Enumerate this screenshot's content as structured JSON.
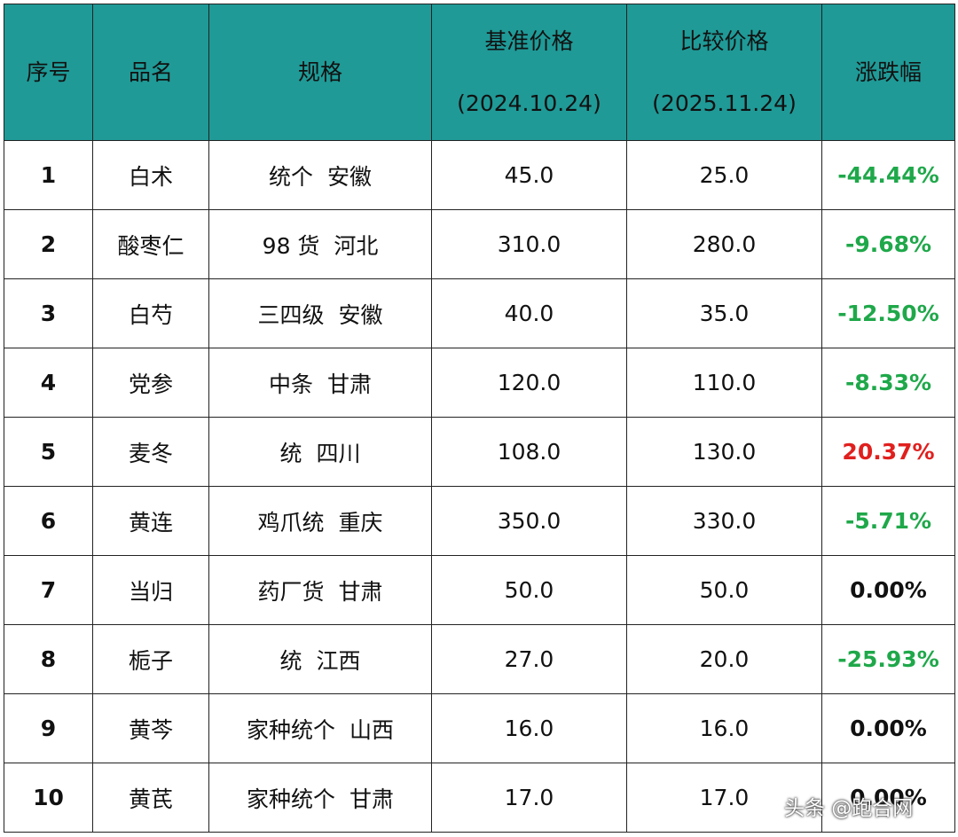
{
  "table": {
    "header": [
      "序号",
      "品名",
      "规格",
      [
        "基准价格",
        "(2024.10.24)"
      ],
      [
        "比较价格",
        "(2025.11.24)"
      ],
      "涨跌幅"
    ],
    "rows": [
      [
        "1",
        "白术",
        "统个  安徽",
        "45.0",
        "25.0",
        "-44.44%"
      ],
      [
        "2",
        "酸枣仁",
        "98 货  河北",
        "310.0",
        "280.0",
        "-9.68%"
      ],
      [
        "3",
        "白芍",
        "三四级  安徽",
        "40.0",
        "35.0",
        "-12.50%"
      ],
      [
        "4",
        "党参",
        "中条  甘肃",
        "120.0",
        "110.0",
        "-8.33%"
      ],
      [
        "5",
        "麦冬",
        "统  四川",
        "108.0",
        "130.0",
        "20.37%"
      ],
      [
        "6",
        "黄连",
        "鸡爪统  重庆",
        "350.0",
        "330.0",
        "-5.71%"
      ],
      [
        "7",
        "当归",
        "药厂货  甘肃",
        "50.0",
        "50.0",
        "0.00%"
      ],
      [
        "8",
        "栀子",
        "统  江西",
        "27.0",
        "20.0",
        "-25.93%"
      ],
      [
        "9",
        "黄芩",
        "家种统个  山西",
        "16.0",
        "16.0",
        "0.00%"
      ],
      [
        "10",
        "黄芪",
        "家种统个  甘肃",
        "17.0",
        "17.0",
        "0.00%"
      ]
    ],
    "change_colors": [
      "#1fa84a",
      "#1fa84a",
      "#1fa84a",
      "#1fa84a",
      "#e0201e",
      "#1fa84a",
      "#111111",
      "#1fa84a",
      "#111111",
      "#111111"
    ]
  },
  "watermark": "头条 @跑合网"
}
